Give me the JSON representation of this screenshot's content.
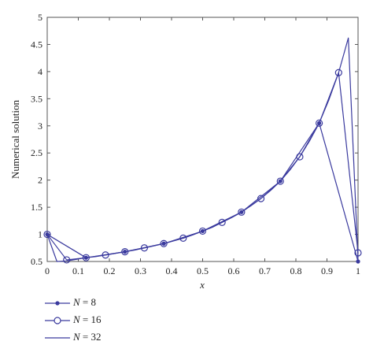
{
  "chart_data": {
    "type": "line",
    "xlabel": "x",
    "ylabel": "Numerical solution",
    "xlim": [
      0,
      1
    ],
    "ylim": [
      0.5,
      5
    ],
    "xticks": [
      "0",
      "0.1",
      "0.2",
      "0.3",
      "0.4",
      "0.5",
      "0.6",
      "0.7",
      "0.8",
      "0.9",
      "1"
    ],
    "yticks": [
      "0.5",
      "1",
      "1.5",
      "2",
      "2.5",
      "3",
      "3.5",
      "4",
      "4.5",
      "5"
    ],
    "grid": false,
    "legend_position": "below",
    "line_color": "#3a3a9e",
    "series": [
      {
        "name": "N = 8",
        "marker": "filled-dot",
        "x": [
          0,
          0.125,
          0.25,
          0.375,
          0.5,
          0.625,
          0.75,
          0.875,
          1
        ],
        "y": [
          1.0,
          0.57,
          0.68,
          0.83,
          1.06,
          1.41,
          1.98,
          3.05,
          0.5
        ]
      },
      {
        "name": "N = 16",
        "marker": "open-circle",
        "x": [
          0,
          0.0625,
          0.125,
          0.1875,
          0.25,
          0.3125,
          0.375,
          0.4375,
          0.5,
          0.5625,
          0.625,
          0.6875,
          0.75,
          0.8125,
          0.875,
          0.9375,
          1
        ],
        "y": [
          1.0,
          0.53,
          0.57,
          0.62,
          0.68,
          0.75,
          0.83,
          0.93,
          1.06,
          1.22,
          1.41,
          1.66,
          1.98,
          2.43,
          3.05,
          3.98,
          0.66
        ]
      },
      {
        "name": "N = 32",
        "marker": "none",
        "x": [
          0,
          0.03125,
          0.0625,
          0.09375,
          0.125,
          0.15625,
          0.1875,
          0.21875,
          0.25,
          0.28125,
          0.3125,
          0.34375,
          0.375,
          0.40625,
          0.4375,
          0.46875,
          0.5,
          0.53125,
          0.5625,
          0.59375,
          0.625,
          0.65625,
          0.6875,
          0.71875,
          0.75,
          0.78125,
          0.8125,
          0.84375,
          0.875,
          0.90625,
          0.9375,
          0.96875,
          1
        ],
        "y": [
          1.0,
          0.5,
          0.51,
          0.54,
          0.57,
          0.59,
          0.62,
          0.65,
          0.68,
          0.71,
          0.75,
          0.79,
          0.83,
          0.88,
          0.93,
          0.99,
          1.06,
          1.13,
          1.22,
          1.31,
          1.41,
          1.53,
          1.66,
          1.81,
          1.98,
          2.19,
          2.43,
          2.72,
          3.05,
          3.48,
          3.98,
          4.62,
          0.52
        ]
      }
    ]
  },
  "legend": {
    "items": [
      {
        "var": "N",
        "rest": " = 8"
      },
      {
        "var": "N",
        "rest": " = 16"
      },
      {
        "var": "N",
        "rest": " = 32"
      }
    ]
  }
}
